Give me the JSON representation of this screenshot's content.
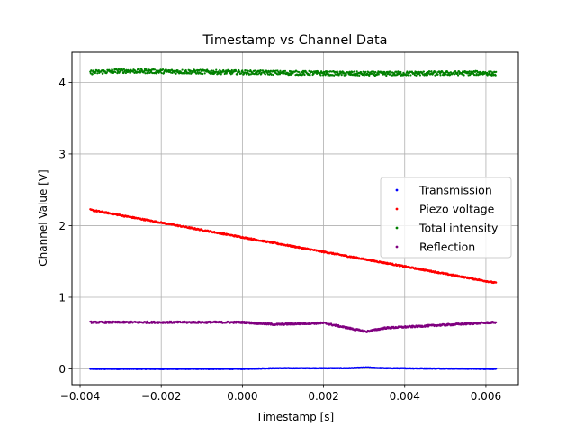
{
  "chart_data": {
    "type": "scatter",
    "title": "Timestamp vs Channel Data",
    "xlabel": "Timestamp [s]",
    "ylabel": "Channel Value [V]",
    "xlim": [
      -0.0042,
      0.0068
    ],
    "ylim": [
      -0.22,
      4.42
    ],
    "x_ticks": [
      -0.004,
      -0.002,
      0.0,
      0.002,
      0.004,
      0.006
    ],
    "x_tick_labels": [
      "−0.004",
      "−0.002",
      "0.000",
      "0.002",
      "0.004",
      "0.006"
    ],
    "y_ticks": [
      0,
      1,
      2,
      3,
      4
    ],
    "y_tick_labels": [
      "0",
      "1",
      "2",
      "3",
      "4"
    ],
    "grid": true,
    "legend_position": "center-right",
    "x_range": [
      -0.00375,
      0.00625
    ],
    "series": [
      {
        "name": "Transmission",
        "color": "#0000ff",
        "points": [
          [
            -0.00375,
            0.0
          ],
          [
            0.0,
            0.0
          ],
          [
            0.0008,
            0.01
          ],
          [
            0.0026,
            0.01
          ],
          [
            0.00305,
            0.02
          ],
          [
            0.0035,
            0.01
          ],
          [
            0.00625,
            0.0
          ]
        ],
        "noise": 0.004
      },
      {
        "name": "Piezo voltage",
        "color": "#ff0000",
        "points": [
          [
            -0.00375,
            2.22
          ],
          [
            0.00625,
            1.2
          ]
        ],
        "noise": 0.01
      },
      {
        "name": "Total intensity",
        "color": "#008000",
        "points": [
          [
            -0.00375,
            4.14
          ],
          [
            -0.003,
            4.16
          ],
          [
            0.0,
            4.14
          ],
          [
            0.003,
            4.12
          ],
          [
            0.006,
            4.13
          ],
          [
            0.00625,
            4.12
          ]
        ],
        "noise": 0.03
      },
      {
        "name": "Reflection",
        "color": "#800080",
        "points": [
          [
            -0.00375,
            0.65
          ],
          [
            0.0,
            0.65
          ],
          [
            0.0008,
            0.62
          ],
          [
            0.002,
            0.64
          ],
          [
            0.00305,
            0.52
          ],
          [
            0.0035,
            0.57
          ],
          [
            0.00625,
            0.65
          ]
        ],
        "noise": 0.012
      }
    ]
  }
}
